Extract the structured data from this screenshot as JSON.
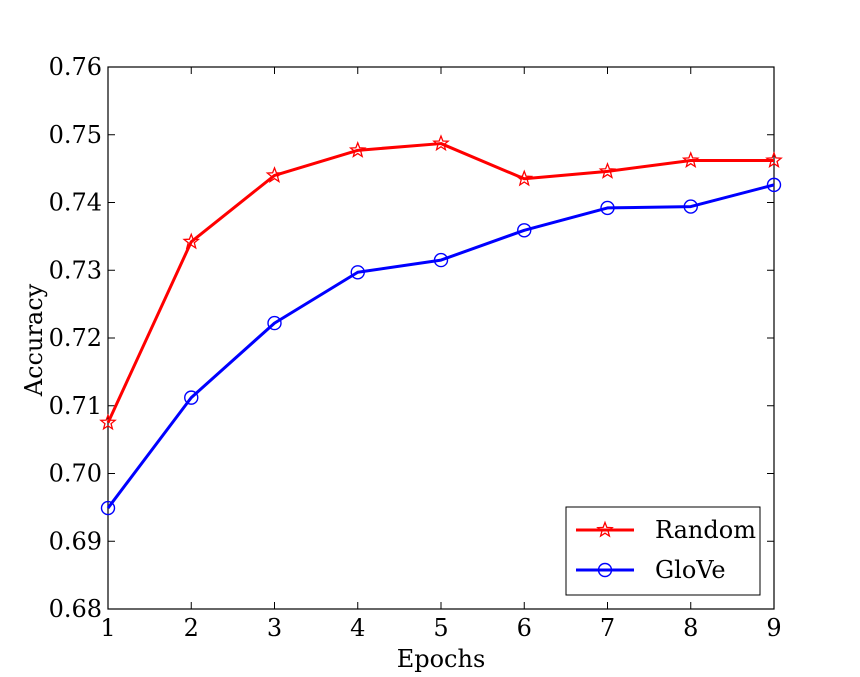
{
  "chart_data": {
    "type": "line",
    "xlabel": "Epochs",
    "ylabel": "Accuracy",
    "xlim": [
      1,
      9
    ],
    "ylim": [
      0.68,
      0.76
    ],
    "x": [
      1,
      2,
      3,
      4,
      5,
      6,
      7,
      8,
      9
    ],
    "x_ticks": [
      1,
      2,
      3,
      4,
      5,
      6,
      7,
      8,
      9
    ],
    "x_tick_labels": [
      "1",
      "2",
      "3",
      "4",
      "5",
      "6",
      "7",
      "8",
      "9"
    ],
    "y_ticks": [
      0.68,
      0.69,
      0.7,
      0.71,
      0.72,
      0.73,
      0.74,
      0.75,
      0.76
    ],
    "y_tick_labels": [
      "0.68",
      "0.69",
      "0.70",
      "0.71",
      "0.72",
      "0.73",
      "0.74",
      "0.75",
      "0.76"
    ],
    "grid": false,
    "legend_position": "lower-right",
    "series": [
      {
        "name": "Random",
        "color": "#ff0000",
        "marker": "star",
        "values": [
          0.7075,
          0.7342,
          0.744,
          0.7477,
          0.7487,
          0.7435,
          0.7446,
          0.7462,
          0.7462
        ]
      },
      {
        "name": "GloVe",
        "color": "#0000ff",
        "marker": "circle",
        "values": [
          0.6949,
          0.7112,
          0.7222,
          0.7297,
          0.7315,
          0.7359,
          0.7392,
          0.7394,
          0.7426
        ]
      }
    ]
  }
}
